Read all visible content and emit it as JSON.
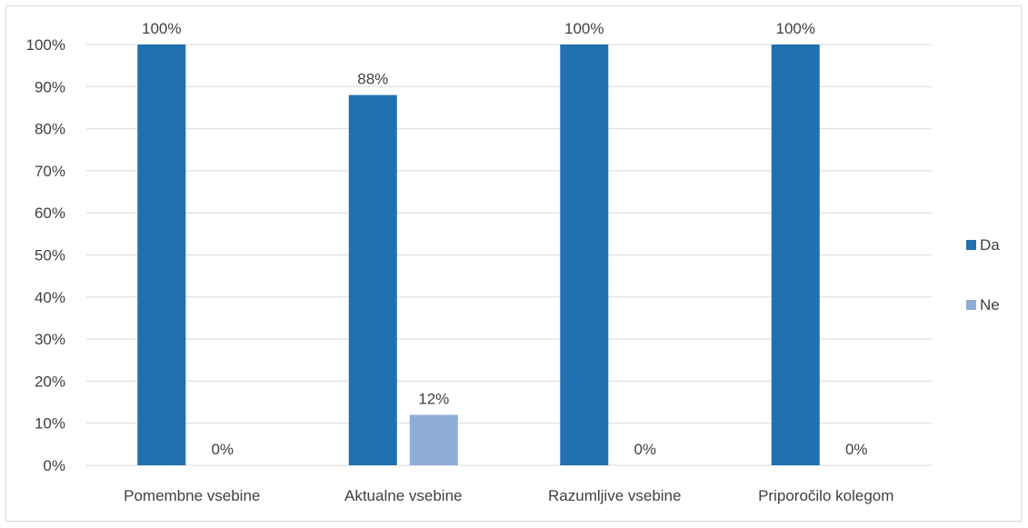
{
  "chart_data": {
    "type": "bar",
    "categories": [
      "Pomembne vsebine",
      "Aktualne vsebine",
      "Razumljive vsebine",
      "Priporočilo kolegom"
    ],
    "series": [
      {
        "name": "Da",
        "values": [
          100,
          88,
          100,
          100
        ],
        "labels": [
          "100%",
          "88%",
          "100%",
          "100%"
        ],
        "color": "#2171b0"
      },
      {
        "name": "Ne",
        "values": [
          0,
          12,
          0,
          0
        ],
        "labels": [
          "0%",
          "12%",
          "0%",
          "0%"
        ],
        "color": "#8eaed8"
      }
    ],
    "yticks": [
      "0%",
      "10%",
      "20%",
      "30%",
      "40%",
      "50%",
      "60%",
      "70%",
      "80%",
      "90%",
      "100%"
    ],
    "ylim": [
      0,
      100
    ],
    "grid": true,
    "legend_position": "right",
    "title": "",
    "xlabel": "",
    "ylabel": ""
  }
}
